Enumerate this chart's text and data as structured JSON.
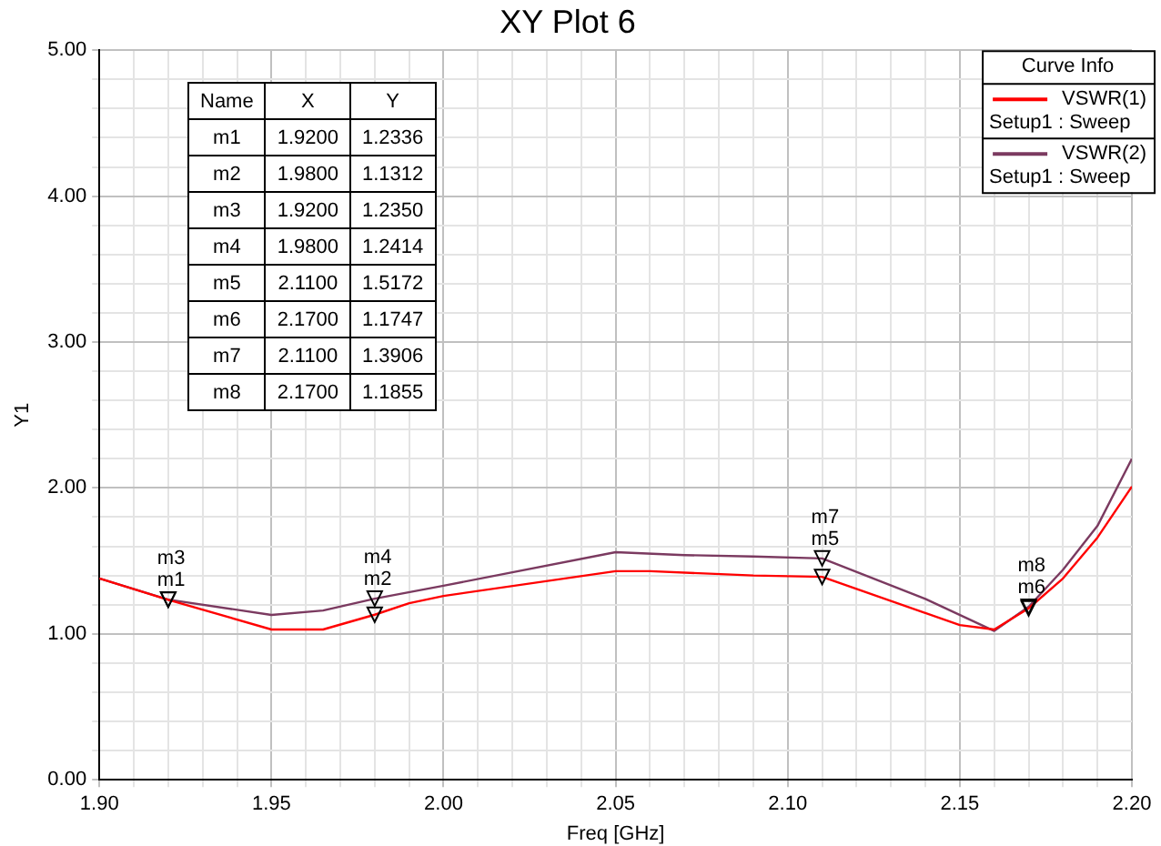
{
  "chart_data": {
    "type": "line",
    "title": "XY Plot 6",
    "xlabel": "Freq [GHz]",
    "ylabel": "Y1",
    "legend_title": "Curve Info",
    "legend": "top right",
    "grid": true,
    "marker": "none",
    "line_style": "solid",
    "xlim": [
      1.9,
      2.2
    ],
    "ylim": [
      0,
      5
    ],
    "xticks": [
      {
        "value": 1.9,
        "label": "1.90"
      },
      {
        "value": 1.91,
        "label": null
      },
      {
        "value": 1.92,
        "label": null
      },
      {
        "value": 1.93,
        "label": null
      },
      {
        "value": 1.94,
        "label": null
      },
      {
        "value": 1.95,
        "label": "1.95"
      },
      {
        "value": 1.96,
        "label": null
      },
      {
        "value": 1.97,
        "label": null
      },
      {
        "value": 1.98,
        "label": null
      },
      {
        "value": 1.99,
        "label": null
      },
      {
        "value": 2.0,
        "label": "2.00"
      },
      {
        "value": 2.01,
        "label": null
      },
      {
        "value": 2.02,
        "label": null
      },
      {
        "value": 2.03,
        "label": null
      },
      {
        "value": 2.04,
        "label": null
      },
      {
        "value": 2.05,
        "label": "2.05"
      },
      {
        "value": 2.06,
        "label": null
      },
      {
        "value": 2.07,
        "label": null
      },
      {
        "value": 2.08,
        "label": null
      },
      {
        "value": 2.09,
        "label": null
      },
      {
        "value": 2.1,
        "label": "2.10"
      },
      {
        "value": 2.11,
        "label": null
      },
      {
        "value": 2.12,
        "label": null
      },
      {
        "value": 2.13,
        "label": null
      },
      {
        "value": 2.14,
        "label": null
      },
      {
        "value": 2.15,
        "label": "2.15"
      },
      {
        "value": 2.16,
        "label": null
      },
      {
        "value": 2.17,
        "label": null
      },
      {
        "value": 2.18,
        "label": null
      },
      {
        "value": 2.19,
        "label": null
      },
      {
        "value": 2.2,
        "label": "2.20"
      }
    ],
    "yticks": [
      {
        "value": 0,
        "label": "0.00"
      },
      {
        "value": 0.2,
        "label": null
      },
      {
        "value": 0.4,
        "label": null
      },
      {
        "value": 0.6,
        "label": null
      },
      {
        "value": 0.8,
        "label": null
      },
      {
        "value": 1,
        "label": "1.00"
      },
      {
        "value": 1.2,
        "label": null
      },
      {
        "value": 1.4,
        "label": null
      },
      {
        "value": 1.6,
        "label": null
      },
      {
        "value": 1.8,
        "label": null
      },
      {
        "value": 2,
        "label": "2.00"
      },
      {
        "value": 2.2,
        "label": null
      },
      {
        "value": 2.4,
        "label": null
      },
      {
        "value": 2.6,
        "label": null
      },
      {
        "value": 2.8,
        "label": null
      },
      {
        "value": 3,
        "label": "3.00"
      },
      {
        "value": 3.2,
        "label": null
      },
      {
        "value": 3.4,
        "label": null
      },
      {
        "value": 3.6,
        "label": null
      },
      {
        "value": 3.8,
        "label": null
      },
      {
        "value": 4,
        "label": "4.00"
      },
      {
        "value": 4.2,
        "label": null
      },
      {
        "value": 4.4,
        "label": null
      },
      {
        "value": 4.6,
        "label": null
      },
      {
        "value": 4.8,
        "label": null
      },
      {
        "value": 5,
        "label": "5.00"
      }
    ],
    "series": [
      {
        "name": "VSWR(1)\nSetup1 : Sweep",
        "color": "#ff0000",
        "x": [
          1.9,
          1.92,
          1.95,
          1.965,
          1.98,
          1.99,
          2.0,
          2.05,
          2.06,
          2.09,
          2.11,
          2.15,
          2.16,
          2.17,
          2.18,
          2.19,
          2.2
        ],
        "values": [
          1.38,
          1.2336,
          1.03,
          1.03,
          1.1312,
          1.21,
          1.26,
          1.43,
          1.43,
          1.4,
          1.3906,
          1.06,
          1.03,
          1.1747,
          1.38,
          1.66,
          2.01
        ]
      },
      {
        "name": "VSWR(2)\nSetup1 : Sweep",
        "color": "#7b3a60",
        "x": [
          1.9,
          1.92,
          1.95,
          1.965,
          1.98,
          2.0,
          2.05,
          2.07,
          2.09,
          2.11,
          2.14,
          2.16,
          2.17,
          2.18,
          2.19,
          2.2
        ],
        "values": [
          1.38,
          1.235,
          1.13,
          1.16,
          1.2414,
          1.33,
          1.56,
          1.54,
          1.53,
          1.5172,
          1.24,
          1.02,
          1.1855,
          1.44,
          1.74,
          2.2
        ]
      }
    ],
    "annotations": [
      "Name",
      "X",
      "Y",
      "m1",
      "1.9200",
      "1.2336",
      "m2",
      "1.9800",
      "1.1312",
      "m3",
      "1.9200",
      "1.2350",
      "m4",
      "1.9800",
      "1.2414",
      "m5",
      "2.1100",
      "1.5172",
      "m6",
      "2.1700",
      "1.1747",
      "m7",
      "2.1100",
      "1.3906",
      "m8",
      "2.1700",
      "1.1855",
      {
        "text": "m1",
        "x": 1.92,
        "y": 1.2336
      },
      {
        "text": "m2",
        "x": 1.98,
        "y": 1.1312
      },
      {
        "text": "m3",
        "x": 1.92,
        "y": 1.235
      },
      {
        "text": "m4",
        "x": 1.98,
        "y": 1.2414
      },
      {
        "text": "m5",
        "x": 2.11,
        "y": 1.5172
      },
      {
        "text": "m6",
        "x": 2.17,
        "y": 1.1747
      },
      {
        "text": "m7",
        "x": 2.11,
        "y": 1.3906
      },
      {
        "text": "m8",
        "x": 2.17,
        "y": 1.1855
      }
    ]
  }
}
